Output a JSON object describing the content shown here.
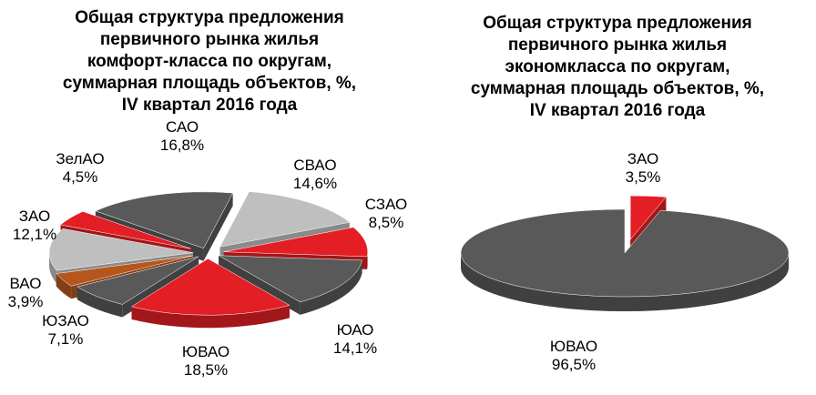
{
  "chart_data": [
    {
      "type": "pie",
      "title_lines": [
        "Общая структура предложения",
        "первичного рынка жилья",
        "комфорт-класса по округам,",
        "суммарная площадь объектов, %,",
        "IV квартал 2016 года"
      ],
      "categories": [
        "САО",
        "СВАО",
        "СЗАО",
        "ЮАО",
        "ЮВАО",
        "ЮЗАО",
        "ВАО",
        "ЗАО",
        "ЗелАО"
      ],
      "values": [
        16.8,
        14.6,
        8.5,
        14.1,
        18.5,
        7.1,
        3.9,
        12.1,
        4.5
      ],
      "value_labels": [
        "16,8%",
        "14,6%",
        "8,5%",
        "14,1%",
        "18,5%",
        "7,1%",
        "3,9%",
        "12,1%",
        "4,5%"
      ],
      "colors": [
        "#595959",
        "#bfbfbf",
        "#e31e24",
        "#595959",
        "#e31e24",
        "#595959",
        "#b5561c",
        "#bfbfbf",
        "#e31e24"
      ],
      "exploded": true,
      "legend": "none"
    },
    {
      "type": "pie",
      "title_lines": [
        "Общая структура предложения",
        "первичного рынка жилья",
        "экономкласса по округам,",
        "суммарная площадь объектов, %,",
        "IV квартал 2016 года"
      ],
      "categories": [
        "ЗАО",
        "ЮВАО"
      ],
      "values": [
        3.5,
        96.5
      ],
      "value_labels": [
        "3,5%",
        "96,5%"
      ],
      "colors": [
        "#e31e24",
        "#595959"
      ],
      "exploded": true,
      "legend": "none"
    }
  ]
}
